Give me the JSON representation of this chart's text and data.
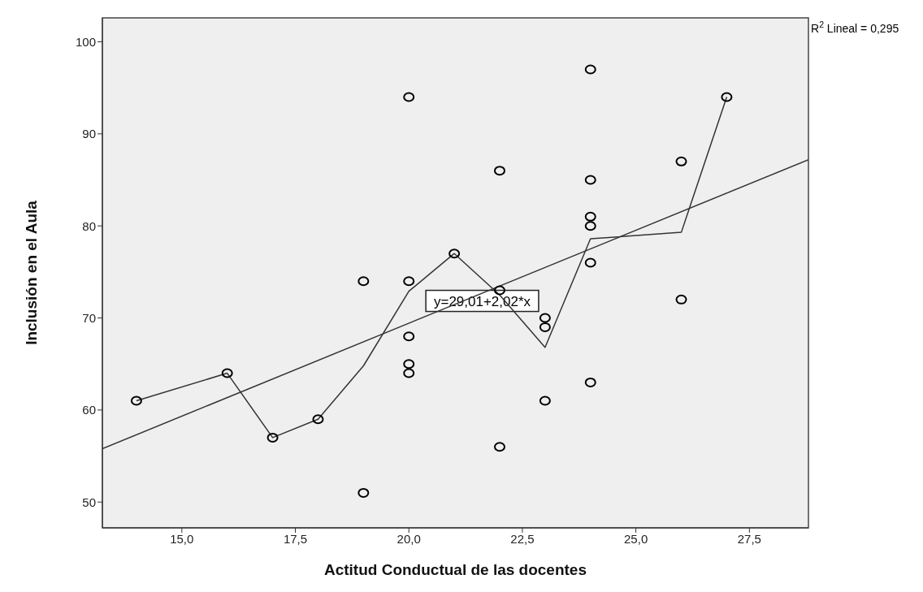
{
  "chart_data": {
    "type": "scatter",
    "xlabel": "Actitud Conductual de las docentes",
    "ylabel": "Inclusión en el Aula",
    "xlim": [
      13.25,
      28.8
    ],
    "xticks": [
      {
        "value": 15,
        "label": "15,0"
      },
      {
        "value": 17.5,
        "label": "17,5"
      },
      {
        "value": 20,
        "label": "20,0"
      },
      {
        "value": 22.5,
        "label": "22,5"
      },
      {
        "value": 25,
        "label": "25,0"
      },
      {
        "value": 27.5,
        "label": "27,5"
      }
    ],
    "ylim": [
      47.2,
      102.6
    ],
    "yticks": [
      50,
      60,
      70,
      80,
      90,
      100
    ],
    "grid": false,
    "legend": false,
    "series": [
      {
        "marker": "circle",
        "color": "#000000",
        "x": [
          14,
          16,
          17,
          18,
          19,
          19,
          20,
          20,
          20,
          20,
          20,
          21,
          22,
          22,
          22,
          23,
          23,
          23,
          24,
          24,
          24,
          24,
          24,
          24,
          26,
          26,
          27
        ],
        "values": [
          61,
          64,
          57,
          59,
          74,
          51,
          94,
          74,
          68,
          65,
          64,
          77,
          86,
          73,
          56,
          70,
          69,
          61,
          97,
          85,
          81,
          80,
          76,
          63,
          87,
          72,
          94
        ]
      },
      {
        "type": "line",
        "color": "#333333",
        "x": [
          14,
          16,
          17,
          18,
          19,
          20,
          21,
          22,
          23,
          24,
          26,
          27
        ],
        "values": [
          61,
          64,
          57,
          59,
          64.8,
          72.9,
          77,
          72.5,
          66.8,
          78.6,
          79.3,
          94
        ]
      },
      {
        "type": "line",
        "color": "#333333",
        "x": [
          13.25,
          28.8
        ],
        "values": [
          55.8,
          87.2
        ]
      }
    ],
    "annotations": [
      "y=29,01+2,02*x",
      "R$^{2}$ Lineal = 0,295"
    ]
  }
}
